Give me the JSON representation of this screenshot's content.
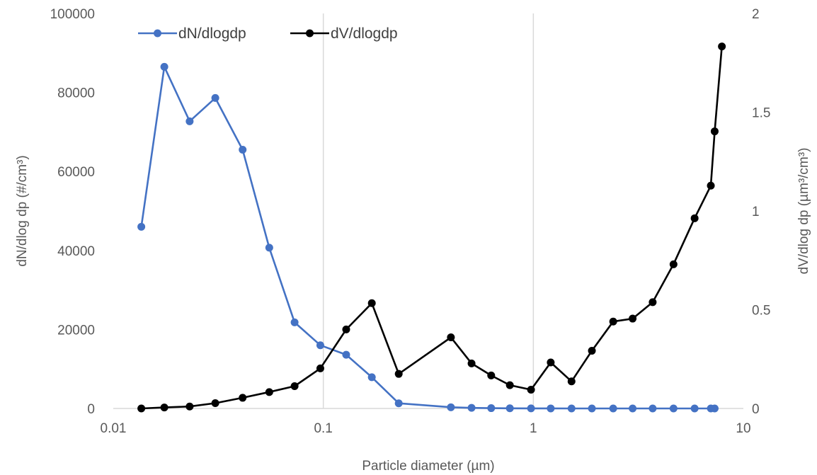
{
  "chart_data": {
    "type": "line",
    "title": "",
    "xlabel": "Particle diameter (µm)",
    "x_scale": "log",
    "xlim": [
      0.01,
      10
    ],
    "x_ticks": [
      "0.01",
      "0.1",
      "1",
      "10"
    ],
    "y_left": {
      "label": "dN/dlog dp (#/cm³)",
      "lim": [
        0,
        100000
      ],
      "ticks": [
        "0",
        "20000",
        "40000",
        "60000",
        "80000",
        "100000"
      ]
    },
    "y_right": {
      "label": "dV/dlog dp (µm³/cm³)",
      "lim": [
        0,
        2
      ],
      "ticks": [
        "0",
        "0.5",
        "1",
        "1.5",
        "2"
      ]
    },
    "grid": "vertical major gridlines only",
    "legend_position": "top-left",
    "series": [
      {
        "name": "dN/dlogdp",
        "axis": "left",
        "color": "#4472c4",
        "x": [
          0.0136,
          0.0175,
          0.0231,
          0.0306,
          0.0413,
          0.0553,
          0.073,
          0.0968,
          0.1285,
          0.1702,
          0.2286,
          0.405,
          0.508,
          0.63,
          0.773,
          0.975,
          1.21,
          1.52,
          1.9,
          2.4,
          2.97,
          3.7,
          4.65,
          5.86,
          7.0,
          7.3
        ],
        "values": [
          46000,
          86500,
          72700,
          78600,
          65500,
          40700,
          21800,
          16000,
          13600,
          7900,
          1300,
          300,
          150,
          80,
          40,
          20,
          10,
          5,
          5,
          5,
          5,
          5,
          5,
          5,
          5,
          5
        ]
      },
      {
        "name": "dV/dlogdp",
        "axis": "right",
        "color": "#000000",
        "x": [
          0.0136,
          0.0175,
          0.0231,
          0.0306,
          0.0413,
          0.0553,
          0.073,
          0.0968,
          0.1285,
          0.1702,
          0.2286,
          0.405,
          0.508,
          0.63,
          0.773,
          0.975,
          1.21,
          1.52,
          1.9,
          2.4,
          2.97,
          3.7,
          4.65,
          5.86,
          7.0,
          7.3,
          7.9
        ],
        "values": [
          0.0,
          0.005,
          0.01,
          0.027,
          0.054,
          0.083,
          0.113,
          0.203,
          0.4,
          0.533,
          0.175,
          0.36,
          0.228,
          0.167,
          0.118,
          0.095,
          0.233,
          0.137,
          0.292,
          0.44,
          0.455,
          0.538,
          0.73,
          0.963,
          1.128,
          1.403,
          1.833
        ]
      }
    ]
  }
}
